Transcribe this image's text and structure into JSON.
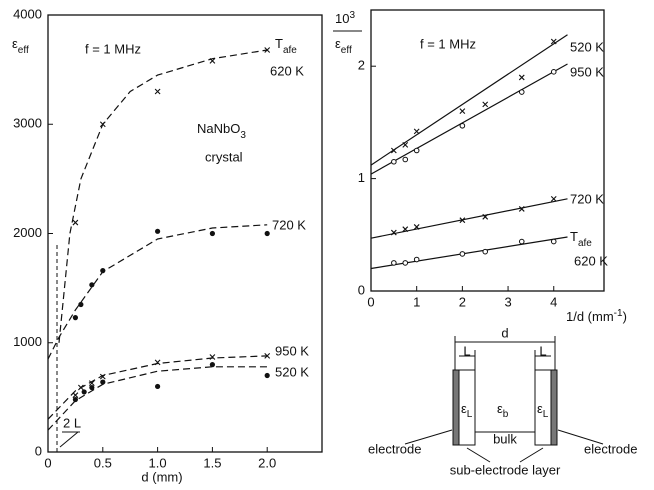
{
  "charts_note_free": null,
  "chart_data": [
    {
      "type": "scatter",
      "ylabel": "ε",
      "ylabel_sub": "eff",
      "xlabel": "d (mm)",
      "annotations": [
        "f = 1 MHz",
        "NaNbO",
        "3",
        "crystal",
        "2 L"
      ],
      "xlim": [
        0,
        2.5
      ],
      "ylim": [
        0,
        4000
      ],
      "xticks": [
        0,
        0.5,
        {
          "value": 1,
          "label": "1.0"
        },
        1.5,
        {
          "value": 2,
          "label": "2.0"
        }
      ],
      "yticks": [
        0,
        1000,
        2000,
        3000,
        4000
      ],
      "color": "#111111",
      "fit_style": "dashed",
      "series": [
        {
          "name": "620 K",
          "prefix": "T",
          "prefix_sub": "afe",
          "marker": "cross",
          "x": [
            0.25,
            0.5,
            1.0,
            1.5,
            2.0
          ],
          "values": [
            2100,
            3000,
            3300,
            3580,
            3680
          ],
          "fit_x": [
            0.1,
            0.2,
            0.3,
            0.5,
            0.75,
            1.0,
            1.5,
            2.0
          ],
          "fit_values": [
            1000,
            2000,
            2500,
            3000,
            3300,
            3450,
            3600,
            3680
          ]
        },
        {
          "name": "720 K",
          "marker": "dot",
          "x": [
            0.25,
            0.3,
            0.4,
            0.5,
            1.0,
            1.5,
            2.0
          ],
          "values": [
            1230,
            1350,
            1530,
            1660,
            2020,
            2000,
            2000
          ],
          "fit_x": [
            0,
            0.1,
            0.25,
            0.5,
            1.0,
            1.5,
            2.0
          ],
          "fit_values": [
            850,
            1050,
            1300,
            1650,
            1950,
            2050,
            2080
          ]
        },
        {
          "name": "950 K",
          "marker": "cross",
          "x": [
            0.25,
            0.3,
            0.4,
            0.5,
            1.0,
            1.5,
            2.0
          ],
          "values": [
            520,
            590,
            630,
            690,
            820,
            870,
            880
          ],
          "fit_x": [
            0,
            0.25,
            0.5,
            1.0,
            1.5,
            2.0
          ],
          "fit_values": [
            300,
            560,
            700,
            810,
            860,
            880
          ]
        },
        {
          "name": "520 K",
          "marker": "dot",
          "x": [
            0.25,
            0.33,
            0.4,
            0.5,
            1.0,
            1.5,
            2.0
          ],
          "values": [
            480,
            550,
            590,
            640,
            600,
            800,
            700
          ],
          "fit_x": [
            0,
            0.25,
            0.5,
            1.0,
            1.5,
            2.0
          ],
          "fit_values": [
            200,
            470,
            620,
            740,
            780,
            780
          ]
        }
      ]
    },
    {
      "type": "scatter",
      "ylabel_num": "10",
      "ylabel_num_sup": "3",
      "ylabel": "ε",
      "ylabel_sub": "eff",
      "xlabel": "1/d  (mm",
      "xlabel_sup": "-1",
      "xlabel_end": ")",
      "annotations": [
        "f = 1 MHz"
      ],
      "xlim": [
        0,
        5.1
      ],
      "ylim": [
        0,
        2.5
      ],
      "xticks": [
        0,
        1,
        2,
        3,
        4
      ],
      "yticks": [
        0,
        1,
        2
      ],
      "color": "#111111",
      "fit_style": "solid",
      "series": [
        {
          "name": "520 K",
          "marker": "cross",
          "x": [
            0.5,
            0.75,
            1,
            2,
            2.5,
            3.3,
            4
          ],
          "values": [
            1.25,
            1.3,
            1.42,
            1.6,
            1.66,
            1.9,
            2.22
          ],
          "fit_x": [
            0,
            4.3
          ],
          "fit_values": [
            1.12,
            2.28
          ]
        },
        {
          "name": "950 K",
          "marker": "circle",
          "x": [
            0.5,
            0.75,
            1,
            2,
            3.3,
            4
          ],
          "values": [
            1.15,
            1.17,
            1.25,
            1.47,
            1.77,
            1.95
          ],
          "fit_x": [
            0,
            4.3
          ],
          "fit_values": [
            1.04,
            2.02
          ]
        },
        {
          "name": "720 K",
          "marker": "cross",
          "x": [
            0.5,
            0.75,
            1,
            2,
            2.5,
            3.3,
            4
          ],
          "values": [
            0.52,
            0.55,
            0.57,
            0.63,
            0.66,
            0.73,
            0.82
          ],
          "fit_x": [
            0,
            4.3
          ],
          "fit_values": [
            0.47,
            0.82
          ]
        },
        {
          "name": "620 K",
          "prefix": "T",
          "prefix_sub": "afe",
          "marker": "circle",
          "x": [
            0.5,
            0.75,
            1,
            2,
            2.5,
            3.3,
            4
          ],
          "values": [
            0.25,
            0.25,
            0.28,
            0.33,
            0.35,
            0.44,
            0.44
          ],
          "fit_x": [
            0,
            4.3
          ],
          "fit_values": [
            0.2,
            0.48
          ]
        }
      ]
    }
  ],
  "diagram": {
    "d": "d",
    "l_left": "L",
    "l_right": "L",
    "eps": "ε",
    "sub_l": "L",
    "sub_b": "b",
    "bulk": "bulk",
    "electrode_left": "electrode",
    "electrode_right": "electrode",
    "layer": "sub-electrode layer"
  }
}
